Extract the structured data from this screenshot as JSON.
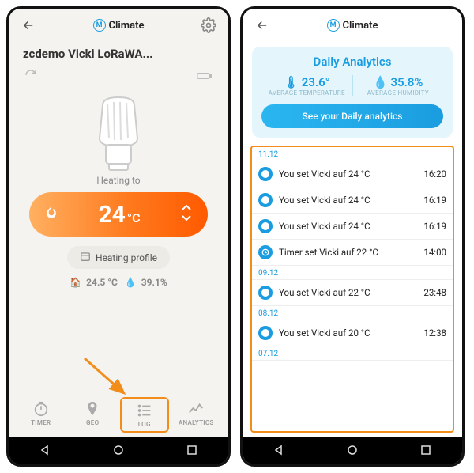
{
  "brand": "Climate",
  "left": {
    "device_name": "zcdemo Vicki LoRaWA...",
    "heating_label": "Heating to",
    "temp_value": "24",
    "temp_unit": "°C",
    "profile_label": "Heating profile",
    "env_temp": "24.5 °C",
    "env_humidity": "39.1%",
    "tabs": {
      "timer": "TIMER",
      "geo": "GEO",
      "log": "LOG",
      "analytics": "ANALYTICS"
    }
  },
  "right": {
    "title": "Daily Analytics",
    "avg_temp_val": "23.6°",
    "avg_temp_lbl": "AVERAGE TEMPERATURE",
    "avg_hum_val": "35.8%",
    "avg_hum_lbl": "AVERAGE HUMIDITY",
    "btn": "See your Daily analytics",
    "groups": [
      {
        "date": "11.12",
        "rows": [
          {
            "type": "user",
            "text": "You set Vicki auf 24 °C",
            "time": "16:20"
          },
          {
            "type": "user",
            "text": "You set Vicki auf 24 °C",
            "time": "16:19"
          },
          {
            "type": "user",
            "text": "You set Vicki auf 24 °C",
            "time": "16:19"
          },
          {
            "type": "timer",
            "text": "Timer set Vicki auf 22 °C",
            "time": "14:00"
          }
        ]
      },
      {
        "date": "09.12",
        "rows": [
          {
            "type": "user",
            "text": "You set Vicki auf 22 °C",
            "time": "23:48"
          }
        ]
      },
      {
        "date": "08.12",
        "rows": [
          {
            "type": "user",
            "text": "You set Vicki auf 20 °C",
            "time": "12:38"
          }
        ]
      },
      {
        "date": "07.12",
        "rows": []
      }
    ]
  },
  "colors": {
    "accent_blue": "#1a9de0",
    "accent_orange": "#f28c1a",
    "pill_start": "#ffb061",
    "pill_end": "#ff5a00"
  }
}
